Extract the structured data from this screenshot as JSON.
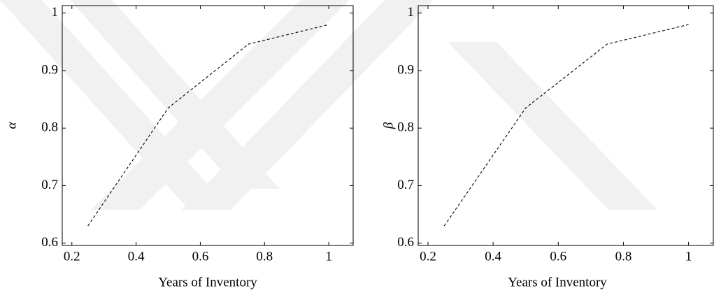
{
  "chart_data": [
    {
      "type": "line",
      "x": [
        0.25,
        0.5,
        0.75,
        1
      ],
      "values": [
        0.63,
        0.835,
        0.946,
        0.98
      ],
      "color": "#000000",
      "linestyle": "dashed",
      "xlabel": "Years of Inventory",
      "ylabel": "α",
      "xlim": [
        0.17,
        1.076
      ],
      "ylim": [
        0.596,
        1.013
      ],
      "xticks": [
        0.2,
        0.4,
        0.6,
        0.8,
        1
      ],
      "yticks": [
        0.6,
        0.7,
        0.8,
        0.9,
        1
      ]
    },
    {
      "type": "line",
      "x": [
        0.25,
        0.5,
        0.75,
        1
      ],
      "values": [
        0.63,
        0.835,
        0.946,
        0.98
      ],
      "color": "#000000",
      "linestyle": "dashed",
      "xlabel": "Years of Inventory",
      "ylabel": "β",
      "xlim": [
        0.17,
        1.076
      ],
      "ylim": [
        0.596,
        1.013
      ],
      "xticks": [
        0.2,
        0.4,
        0.6,
        0.8,
        1
      ],
      "yticks": [
        0.6,
        0.7,
        0.8,
        0.9,
        1
      ]
    }
  ]
}
